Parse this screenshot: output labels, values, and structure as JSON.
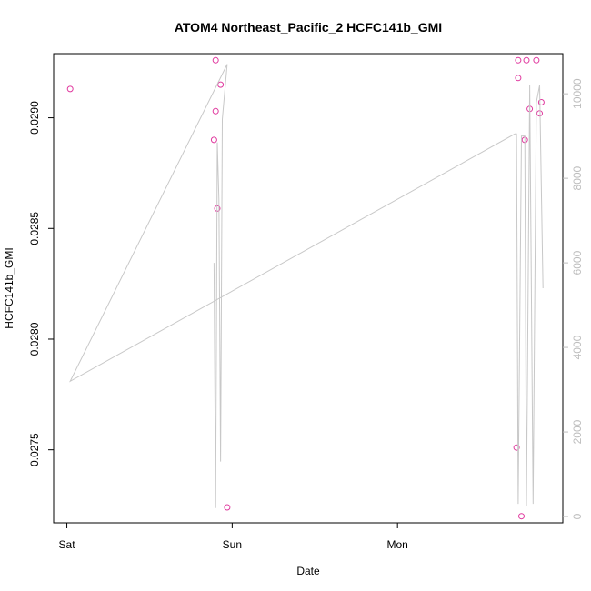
{
  "chart_data": {
    "type": "scatter",
    "title": "ATOM4 Northeast_Pacific_2 HCFC141b_GMI",
    "xlabel": "Date",
    "ylabel": "HCFC141b_GMI",
    "x_ticks": [
      {
        "label": "Sat",
        "value": 0.0
      },
      {
        "label": "Sun",
        "value": 1.0
      },
      {
        "label": "Mon",
        "value": 2.0
      }
    ],
    "xlim": [
      -0.08,
      3.0
    ],
    "ylim": [
      0.02717,
      0.02929
    ],
    "y_ticks": [
      0.0275,
      0.028,
      0.0285,
      0.029
    ],
    "y_tick_labels": [
      "0.0275",
      "0.0280",
      "0.0285",
      "0.0290"
    ],
    "y2lim": [
      -150,
      10950
    ],
    "y2_ticks": [
      0,
      2000,
      4000,
      6000,
      8000,
      10000
    ],
    "y2_tick_labels": [
      "0",
      "2000",
      "4000",
      "6000",
      "8000",
      "10000"
    ],
    "series": [
      {
        "kind": "points",
        "axis": "left",
        "color": "#e0389e",
        "x": [
          0.02,
          0.89,
          0.9,
          0.9,
          0.91,
          0.93,
          0.97,
          2.72,
          2.73,
          2.73,
          2.75,
          2.77,
          2.78,
          2.8,
          2.84,
          2.86,
          2.87
        ],
        "y": [
          0.02913,
          0.0289,
          0.02903,
          0.02926,
          0.02859,
          0.02915,
          0.02724,
          0.02751,
          0.02918,
          0.02926,
          0.0272,
          0.0289,
          0.02926,
          0.02904,
          0.02926,
          0.02902,
          0.02907
        ]
      },
      {
        "kind": "line",
        "axis": "right",
        "color": "#c8c8c8",
        "x": [
          0.89,
          0.9,
          0.91,
          0.92,
          0.93,
          0.94,
          0.97,
          0.02,
          2.71,
          2.72,
          2.73,
          2.75,
          2.77,
          2.78,
          2.8,
          2.82,
          2.84,
          2.86,
          2.88
        ],
        "y": [
          6000,
          200,
          8850,
          7500,
          1300,
          9400,
          10700,
          3200,
          9050,
          9050,
          300,
          9000,
          9000,
          250,
          10200,
          300,
          9800,
          10200,
          5400
        ]
      }
    ]
  }
}
